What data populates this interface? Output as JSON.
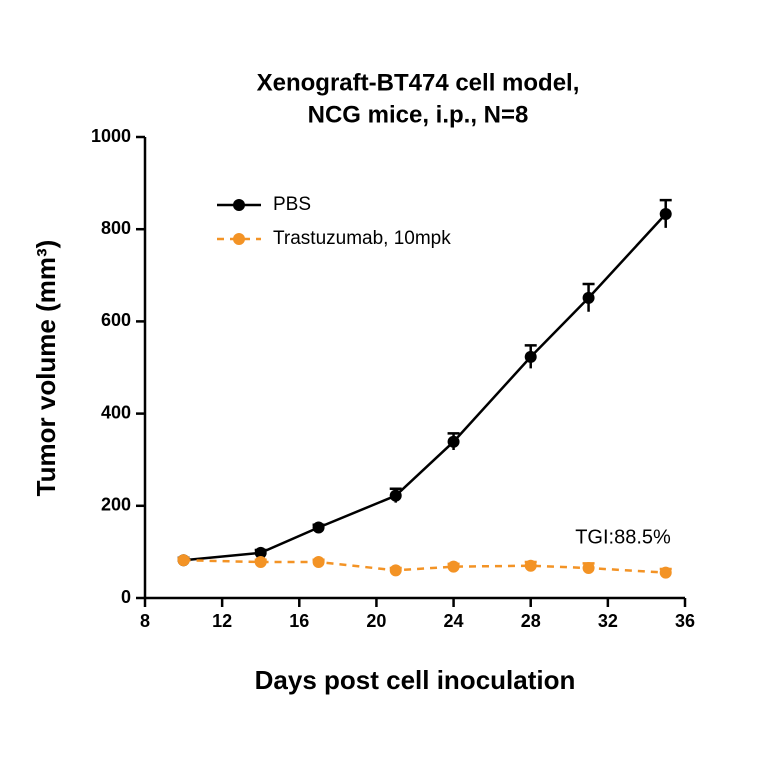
{
  "chart_data": {
    "type": "line",
    "title": [
      "Xenograft-BT474 cell model,",
      "NCG mice, i.p., N=8"
    ],
    "x_label": "Days post cell inoculation",
    "y_label": "Tumor volume (mm³)",
    "x": [
      10,
      14,
      17,
      21,
      24,
      28,
      31,
      35
    ],
    "series": [
      {
        "name": "PBS",
        "color": "#000000",
        "line_style": "solid",
        "values": [
          82,
          98,
          153,
          222,
          339,
          523,
          651,
          833
        ],
        "errors": [
          5,
          6,
          6,
          15,
          18,
          25,
          30,
          30
        ]
      },
      {
        "name": "Trastuzumab, 10mpk",
        "color": "#f39325",
        "line_style": "dashed",
        "values": [
          82,
          78,
          78,
          60,
          68,
          70,
          65,
          55
        ],
        "errors": [
          4,
          5,
          5,
          5,
          6,
          8,
          10,
          8
        ]
      }
    ],
    "xlim": [
      8,
      36
    ],
    "xticks": [
      8,
      12,
      16,
      20,
      24,
      28,
      32,
      36
    ],
    "ylim": [
      0,
      1000
    ],
    "yticks": [
      0,
      200,
      400,
      600,
      800,
      1000
    ],
    "grid": false,
    "legend_position": "upper-left",
    "annotation": "TGI:88.5%"
  }
}
